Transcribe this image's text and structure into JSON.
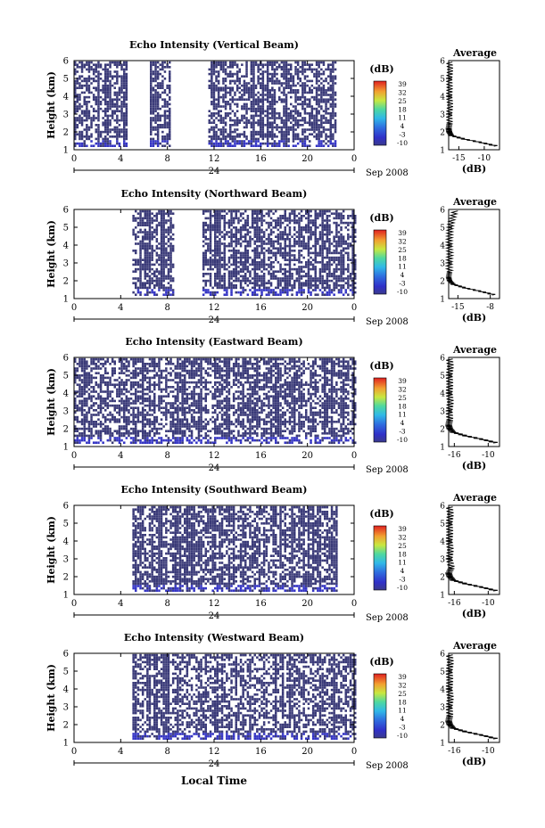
{
  "figure": {
    "x_axis_title": "Local Time",
    "date_label": "Sep 2008",
    "day_label": "24",
    "unit_label": "(dB)",
    "avg_xlabel": "(dB)"
  },
  "chart_data": [
    {
      "type": "heatmap",
      "title": "Echo Intensity (Vertical Beam)",
      "ylabel": "Height (km)",
      "xlim": [
        0,
        24
      ],
      "ylim": [
        1,
        6
      ],
      "x_ticks": [
        "0",
        "4",
        "8",
        "12",
        "16",
        "20",
        "0"
      ],
      "y_ticks": [
        "1",
        "2",
        "3",
        "4",
        "5",
        "6"
      ],
      "colorbar": {
        "ticks": [
          "39",
          "32",
          "25",
          "18",
          "11",
          "4",
          "-3",
          "-10"
        ]
      },
      "data_columns_hours": [
        [
          0,
          4.5
        ],
        [
          6.5,
          8.2
        ],
        [
          11.5,
          22.3
        ]
      ],
      "average_profile": {
        "title": "Average",
        "x_ticks": [
          "-15",
          "-10"
        ],
        "xlim": [
          -17,
          -7
        ],
        "heights": [
          1.2,
          1.4,
          1.6,
          1.8,
          2.0,
          2.2,
          2.5,
          3.0,
          3.5,
          4.0,
          4.5,
          5.0,
          5.5,
          6.0
        ],
        "values": [
          -7.5,
          -10.5,
          -14,
          -16.5,
          -16.9,
          -17,
          -16.8,
          -16.9,
          -16.7,
          -16.9,
          -16.8,
          -16.9,
          -16.7,
          -16.9
        ]
      }
    },
    {
      "type": "heatmap",
      "title": "Echo Intensity (Northward Beam)",
      "ylabel": "Height (km)",
      "xlim": [
        0,
        24
      ],
      "ylim": [
        1,
        6
      ],
      "x_ticks": [
        "0",
        "4",
        "8",
        "12",
        "16",
        "20",
        "0"
      ],
      "y_ticks": [
        "1",
        "2",
        "3",
        "4",
        "5",
        "6"
      ],
      "colorbar": {
        "ticks": [
          "39",
          "32",
          "25",
          "18",
          "11",
          "4",
          "-3",
          "-10"
        ]
      },
      "data_columns_hours": [
        [
          5,
          8.5
        ],
        [
          11,
          24
        ]
      ],
      "average_profile": {
        "title": "Average",
        "x_ticks": [
          "-15",
          "-8"
        ],
        "xlim": [
          -17,
          -6
        ],
        "heights": [
          1.2,
          1.4,
          1.6,
          1.8,
          2.0,
          2.2,
          2.5,
          3.0,
          3.5,
          4.0,
          4.5,
          5.0,
          5.5,
          6.0
        ],
        "values": [
          -7,
          -10,
          -13.5,
          -16,
          -16.8,
          -17,
          -16.8,
          -16.9,
          -16.7,
          -16.9,
          -16.8,
          -16.7,
          -16.2,
          -15.5
        ]
      }
    },
    {
      "type": "heatmap",
      "title": "Echo Intensity (Eastward Beam)",
      "ylabel": "Height (km)",
      "xlim": [
        0,
        24
      ],
      "ylim": [
        1,
        6
      ],
      "x_ticks": [
        "0",
        "4",
        "8",
        "12",
        "16",
        "20",
        "0"
      ],
      "y_ticks": [
        "1",
        "2",
        "3",
        "4",
        "5",
        "6"
      ],
      "colorbar": {
        "ticks": [
          "39",
          "32",
          "25",
          "18",
          "11",
          "4",
          "-3",
          "-10"
        ]
      },
      "data_columns_hours": [
        [
          0,
          24
        ]
      ],
      "average_profile": {
        "title": "Average",
        "x_ticks": [
          "-16",
          "-10"
        ],
        "xlim": [
          -17,
          -8
        ],
        "heights": [
          1.2,
          1.4,
          1.6,
          1.8,
          2.0,
          2.2,
          2.5,
          3.0,
          3.5,
          4.0,
          4.5,
          5.0,
          5.5,
          6.0
        ],
        "values": [
          -8.5,
          -11,
          -14,
          -16.2,
          -16.8,
          -17,
          -16.8,
          -16.9,
          -16.7,
          -16.9,
          -16.8,
          -16.9,
          -16.7,
          -16.9
        ]
      }
    },
    {
      "type": "heatmap",
      "title": "Echo Intensity (Southward Beam)",
      "ylabel": "Height (km)",
      "xlim": [
        0,
        24
      ],
      "ylim": [
        1,
        6
      ],
      "x_ticks": [
        "0",
        "4",
        "8",
        "12",
        "16",
        "20",
        "0"
      ],
      "y_ticks": [
        "1",
        "2",
        "3",
        "4",
        "5",
        "6"
      ],
      "colorbar": {
        "ticks": [
          "39",
          "32",
          "25",
          "18",
          "11",
          "4",
          "-3",
          "-10"
        ]
      },
      "data_columns_hours": [
        [
          5,
          22.5
        ]
      ],
      "average_profile": {
        "title": "Average",
        "x_ticks": [
          "-16",
          "-10"
        ],
        "xlim": [
          -17,
          -8
        ],
        "heights": [
          1.2,
          1.4,
          1.6,
          1.8,
          2.0,
          2.2,
          2.5,
          3.0,
          3.5,
          4.0,
          4.5,
          5.0,
          5.5,
          6.0
        ],
        "values": [
          -8.5,
          -11,
          -14,
          -16.2,
          -16.8,
          -17,
          -16.5,
          -16.9,
          -16.7,
          -16.9,
          -16.8,
          -16.9,
          -16.7,
          -16.9
        ]
      }
    },
    {
      "type": "heatmap",
      "title": "Echo Intensity (Westward Beam)",
      "ylabel": "Height (km)",
      "xlim": [
        0,
        24
      ],
      "ylim": [
        1,
        6
      ],
      "x_ticks": [
        "0",
        "4",
        "8",
        "12",
        "16",
        "20",
        "0"
      ],
      "y_ticks": [
        "1",
        "2",
        "3",
        "4",
        "5",
        "6"
      ],
      "colorbar": {
        "ticks": [
          "39",
          "32",
          "25",
          "18",
          "11",
          "4",
          "-3",
          "-10"
        ]
      },
      "data_columns_hours": [
        [
          5,
          24
        ]
      ],
      "average_profile": {
        "title": "Average",
        "x_ticks": [
          "-16",
          "-10"
        ],
        "xlim": [
          -17,
          -8
        ],
        "heights": [
          1.2,
          1.4,
          1.6,
          1.8,
          2.0,
          2.2,
          2.5,
          3.0,
          3.5,
          4.0,
          4.5,
          5.0,
          5.5,
          6.0
        ],
        "values": [
          -8.5,
          -11,
          -14,
          -16.2,
          -16.8,
          -17,
          -16.8,
          -16.9,
          -16.7,
          -16.9,
          -16.8,
          -16.9,
          -16.7,
          -16.9
        ]
      }
    }
  ]
}
